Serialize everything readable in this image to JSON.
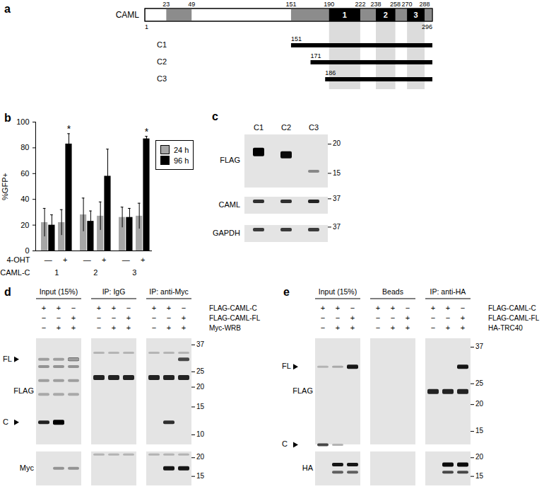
{
  "figure": {
    "a": {
      "label": "a",
      "protein": "CAML",
      "start": 1,
      "end": 296,
      "gray_regions": [
        [
          23,
          49
        ],
        [
          151,
          296
        ]
      ],
      "tmds": [
        {
          "label": "1",
          "start": 190,
          "end": 222
        },
        {
          "label": "2",
          "start": 238,
          "end": 258
        },
        {
          "label": "3",
          "start": 270,
          "end": 288
        }
      ],
      "constructs": [
        {
          "name": "C1",
          "start": 151
        },
        {
          "name": "C2",
          "start": 171
        },
        {
          "name": "C3",
          "start": 186
        }
      ]
    },
    "c": {
      "label": "c",
      "lanes": [
        "C1",
        "C2",
        "C3"
      ],
      "blots": [
        {
          "name": "FLAG",
          "markers": [
            20,
            15
          ]
        },
        {
          "name": "CAML",
          "markers": [
            37
          ]
        },
        {
          "name": "GAPDH",
          "markers": [
            37
          ]
        }
      ]
    },
    "d": {
      "label": "d",
      "groups": [
        "Input (15%)",
        "IP: IgG",
        "IP: anti-Myc"
      ],
      "rows": [
        {
          "name": "FLAG-CAML-C",
          "signs": [
            "+",
            "+",
            "−",
            "+",
            "+",
            "−",
            "+",
            "+",
            "−"
          ]
        },
        {
          "name": "FLAG-CAML-FL",
          "signs": [
            "−",
            "−",
            "+",
            "−",
            "−",
            "+",
            "−",
            "−",
            "+"
          ]
        },
        {
          "name": "Myc-WRB",
          "signs": [
            "−",
            "+",
            "+",
            "−",
            "+",
            "+",
            "−",
            "+",
            "+"
          ]
        }
      ],
      "blots": [
        {
          "name": "FLAG",
          "markers": [
            37,
            25,
            20,
            15,
            10
          ],
          "arrows": [
            "FL",
            "C"
          ]
        },
        {
          "name": "Myc",
          "markers": [
            20,
            15
          ]
        }
      ]
    },
    "e": {
      "label": "e",
      "groups": [
        "Input (15%)",
        "Beads",
        "IP: anti-HA"
      ],
      "rows": [
        {
          "name": "FLAG-CAML-C",
          "signs": [
            "+",
            "+",
            "−",
            "+",
            "+",
            "−",
            "+",
            "+",
            "−"
          ]
        },
        {
          "name": "FLAG-CAML-FL",
          "signs": [
            "−",
            "−",
            "+",
            "−",
            "−",
            "+",
            "−",
            "−",
            "+"
          ]
        },
        {
          "name": "HA-TRC40",
          "signs": [
            "−",
            "+",
            "+",
            "−",
            "+",
            "+",
            "−",
            "+",
            "+"
          ]
        }
      ],
      "blots": [
        {
          "name": "FLAG",
          "markers": [
            37,
            25,
            20,
            15
          ],
          "arrows": [
            "FL",
            "C"
          ]
        },
        {
          "name": "HA",
          "markers": [
            20,
            15
          ]
        }
      ]
    }
  },
  "chart_data": {
    "panel": "b",
    "type": "bar",
    "ylabel": "%GFP+",
    "ylim": [
      0,
      100
    ],
    "yticks": [
      0,
      20,
      40,
      60,
      80,
      100
    ],
    "categories": [
      "—",
      "+",
      "—",
      "+",
      "—",
      "+"
    ],
    "category_label": "4-OHT",
    "groups": [
      "1",
      "2",
      "3"
    ],
    "group_label": "CAML-C",
    "series": [
      {
        "name": "24 h",
        "color": "#a6a6a6",
        "values": [
          22,
          22,
          28,
          27,
          26,
          27
        ],
        "errors": [
          11,
          10,
          13,
          11,
          8,
          10
        ]
      },
      {
        "name": "96 h",
        "color": "#000000",
        "values": [
          20,
          83,
          23,
          58,
          26,
          87
        ],
        "errors": [
          8,
          8,
          8,
          21,
          7,
          2
        ]
      }
    ],
    "annotations": [
      {
        "text": "*",
        "series": "96 h",
        "index": 1
      },
      {
        "text": "*",
        "series": "96 h",
        "index": 5
      }
    ],
    "legend": "right",
    "grid": false
  }
}
